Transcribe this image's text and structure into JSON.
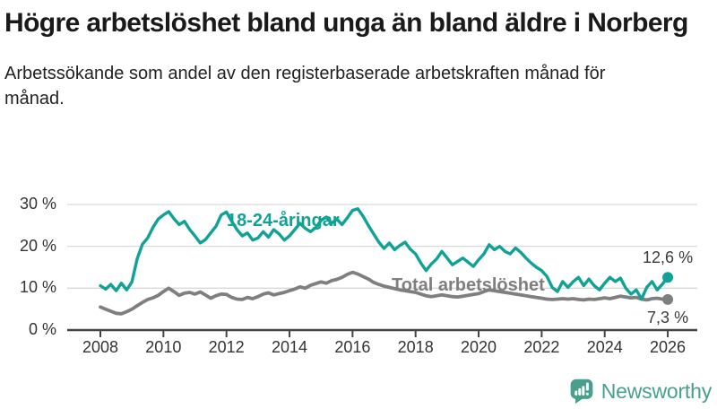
{
  "title": "Högre arbetslöshet bland unga än bland äldre i Norberg",
  "subtitle": "Arbetssökande som andel av den registerbaserade arbetskraften månad för månad.",
  "footer": {
    "brand": "Newsworthy",
    "logo_icon": "speech-bubble-bar-chart-exclamation"
  },
  "colors": {
    "accent_teal": "#10a295",
    "series_gray": "#7f7f7f",
    "grid": "#d9d9d9",
    "axis": "#444444",
    "title_text": "#1a1a1a",
    "tick_text": "#333333",
    "end_label_text": "#3a3a3a",
    "brand_teal": "#47a08e"
  },
  "chart_data": {
    "type": "line",
    "title": "Högre arbetslöshet bland unga än bland äldre i Norberg",
    "xlabel": "",
    "ylabel": "",
    "y_unit": "%",
    "grid": true,
    "legend_position": "inline-labels",
    "x_start": 2008.0,
    "x_step": 0.16667,
    "x_ticks": [
      2008,
      2010,
      2012,
      2014,
      2016,
      2018,
      2020,
      2022,
      2024,
      2026
    ],
    "y_ticks": [
      0,
      10,
      20,
      30
    ],
    "y_tick_labels": [
      "0 %",
      "10 %",
      "20 %",
      "30 %"
    ],
    "xlim": [
      2007.7,
      2027.0
    ],
    "ylim": [
      0,
      32
    ],
    "series": [
      {
        "name": "18-24-åringar",
        "color": "#10a295",
        "end_label": "12,6 %",
        "end_value": 12.6,
        "values": [
          10.6,
          9.8,
          10.9,
          9.4,
          11.2,
          9.6,
          11.5,
          17.0,
          20.5,
          22.0,
          24.5,
          26.5,
          27.5,
          28.3,
          26.6,
          25.2,
          26.0,
          24.0,
          22.5,
          20.8,
          21.6,
          23.2,
          24.8,
          27.5,
          28.2,
          26.0,
          24.0,
          22.5,
          23.2,
          21.5,
          22.0,
          23.5,
          22.2,
          24.0,
          23.0,
          21.5,
          22.5,
          24.0,
          25.5,
          24.3,
          23.5,
          24.5,
          26.2,
          27.0,
          25.5,
          26.5,
          25.2,
          26.8,
          28.6,
          29.0,
          27.2,
          25.0,
          23.0,
          21.0,
          19.5,
          20.8,
          19.2,
          20.2,
          21.0,
          19.3,
          18.2,
          16.0,
          14.2,
          15.8,
          17.0,
          18.8,
          17.2,
          15.6,
          16.4,
          17.2,
          16.2,
          15.2,
          16.8,
          18.2,
          20.4,
          19.2,
          20.0,
          18.8,
          18.2,
          19.6,
          18.6,
          17.2,
          16.0,
          15.0,
          14.2,
          12.8,
          10.2,
          9.2,
          11.6,
          10.2,
          11.6,
          12.6,
          10.6,
          12.2,
          10.6,
          9.6,
          11.2,
          12.6,
          11.6,
          12.4,
          10.0,
          8.6,
          9.6,
          7.4,
          10.2,
          11.6,
          9.6,
          11.0,
          12.6
        ]
      },
      {
        "name": "Total arbetslöshet",
        "color": "#7f7f7f",
        "end_label": "7,3 %",
        "end_value": 7.3,
        "values": [
          5.5,
          5.0,
          4.5,
          4.0,
          3.9,
          4.4,
          5.0,
          5.8,
          6.6,
          7.3,
          7.7,
          8.3,
          9.2,
          10.0,
          9.2,
          8.3,
          8.8,
          9.0,
          8.6,
          9.1,
          8.4,
          7.6,
          8.2,
          8.6,
          8.5,
          7.8,
          7.4,
          7.3,
          7.8,
          7.5,
          8.0,
          8.6,
          8.9,
          8.4,
          8.7,
          9.0,
          9.4,
          9.8,
          10.3,
          10.0,
          10.7,
          11.1,
          11.5,
          11.2,
          11.8,
          12.1,
          12.6,
          13.3,
          13.8,
          13.4,
          12.8,
          12.2,
          11.4,
          10.9,
          10.5,
          10.2,
          9.9,
          9.6,
          9.4,
          9.2,
          9.0,
          8.6,
          8.2,
          8.0,
          8.2,
          8.4,
          8.2,
          8.0,
          7.9,
          8.1,
          8.3,
          8.5,
          8.7,
          9.2,
          9.6,
          9.4,
          9.2,
          9.0,
          8.8,
          8.6,
          8.4,
          8.2,
          8.0,
          7.8,
          7.6,
          7.4,
          7.3,
          7.4,
          7.5,
          7.4,
          7.5,
          7.3,
          7.2,
          7.4,
          7.3,
          7.5,
          7.7,
          7.5,
          7.8,
          8.1,
          7.9,
          7.7,
          7.8,
          7.4,
          7.2,
          7.5,
          7.6,
          7.4,
          7.3
        ]
      }
    ]
  }
}
